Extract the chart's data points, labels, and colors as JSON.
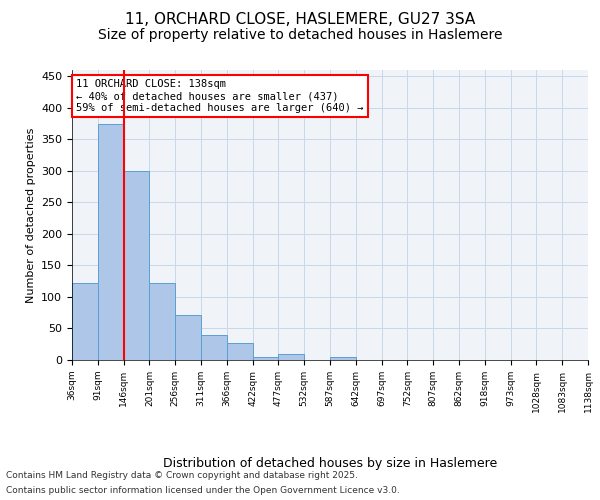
{
  "title1": "11, ORCHARD CLOSE, HASLEMERE, GU27 3SA",
  "title2": "Size of property relative to detached houses in Haslemere",
  "xlabel": "Distribution of detached houses by size in Haslemere",
  "ylabel": "Number of detached properties",
  "bin_labels": [
    "36sqm",
    "91sqm",
    "146sqm",
    "201sqm",
    "256sqm",
    "311sqm",
    "366sqm",
    "422sqm",
    "477sqm",
    "532sqm",
    "587sqm",
    "642sqm",
    "697sqm",
    "752sqm",
    "807sqm",
    "862sqm",
    "918sqm",
    "973sqm",
    "1028sqm",
    "1083sqm",
    "1138sqm"
  ],
  "bar_values": [
    122,
    375,
    300,
    122,
    72,
    40,
    27,
    5,
    10,
    0,
    5,
    0,
    0,
    0,
    0,
    0,
    0,
    0,
    0,
    0
  ],
  "bar_color": "#aec6e8",
  "bar_edge_color": "#5a9fd4",
  "property_line_x": 2,
  "annotation_text": "11 ORCHARD CLOSE: 138sqm\n← 40% of detached houses are smaller (437)\n59% of semi-detached houses are larger (640) →",
  "annotation_box_color": "white",
  "annotation_box_edge": "red",
  "ylim": [
    0,
    460
  ],
  "yticks": [
    0,
    50,
    100,
    150,
    200,
    250,
    300,
    350,
    400,
    450
  ],
  "grid_color": "#c8d8e8",
  "background_color": "#f0f4f8",
  "footer1": "Contains HM Land Registry data © Crown copyright and database right 2025.",
  "footer2": "Contains public sector information licensed under the Open Government Licence v3.0.",
  "title_fontsize": 11,
  "subtitle_fontsize": 10
}
